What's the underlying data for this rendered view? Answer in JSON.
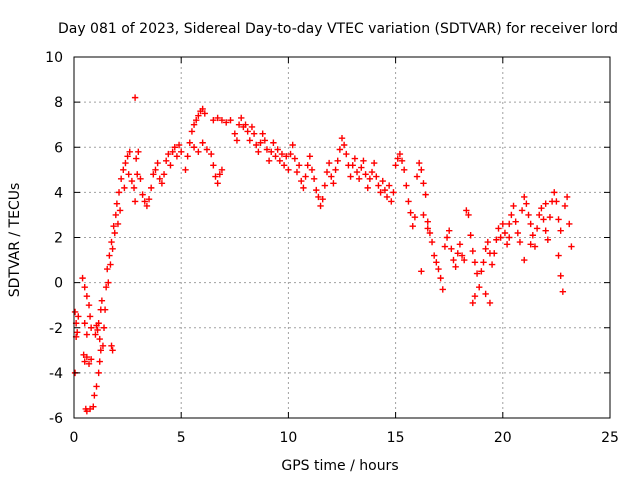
{
  "colors": {
    "series": "#ff0000",
    "grid": "#a0a0a0",
    "axis": "#000000",
    "background": "#ffffff"
  },
  "chart_data": {
    "type": "scatter",
    "title": "Day 081 of 2023, Sidereal Day-to-day VTEC variation (SDTVAR) for receiver lord",
    "xlabel": "GPS time / hours",
    "ylabel": "SDTVAR / TECUs",
    "xlim": [
      0,
      25
    ],
    "ylim": [
      -6,
      10
    ],
    "xticks": [
      0,
      5,
      10,
      15,
      20,
      25
    ],
    "yticks": [
      -6,
      -4,
      -2,
      0,
      2,
      4,
      6,
      8,
      10
    ],
    "grid": true,
    "marker": "+",
    "series": [
      {
        "name": "SDTVAR",
        "points": [
          [
            0.05,
            -1.3
          ],
          [
            0.1,
            -1.8
          ],
          [
            0.15,
            -2.2
          ],
          [
            0.1,
            -2.4
          ],
          [
            0.05,
            -4.0
          ],
          [
            0.2,
            -1.5
          ],
          [
            0.4,
            0.2
          ],
          [
            0.5,
            -0.2
          ],
          [
            0.6,
            -0.6
          ],
          [
            0.7,
            -1.0
          ],
          [
            0.75,
            -1.5
          ],
          [
            0.8,
            -2.0
          ],
          [
            0.6,
            -2.3
          ],
          [
            0.5,
            -1.8
          ],
          [
            0.45,
            -3.2
          ],
          [
            0.5,
            -3.5
          ],
          [
            0.6,
            -3.3
          ],
          [
            0.7,
            -3.6
          ],
          [
            0.8,
            -3.4
          ],
          [
            0.55,
            -5.6
          ],
          [
            0.6,
            -5.7
          ],
          [
            0.75,
            -5.6
          ],
          [
            0.9,
            -5.5
          ],
          [
            0.95,
            -5.0
          ],
          [
            1.05,
            -4.6
          ],
          [
            1.15,
            -4.0
          ],
          [
            1.2,
            -3.5
          ],
          [
            1.25,
            -3.0
          ],
          [
            1.2,
            -2.5
          ],
          [
            1.1,
            -2.1
          ],
          [
            1.0,
            -2.3
          ],
          [
            1.05,
            -1.9
          ],
          [
            1.15,
            -1.8
          ],
          [
            1.25,
            -1.2
          ],
          [
            1.3,
            -0.8
          ],
          [
            1.35,
            -2.8
          ],
          [
            1.4,
            -2.0
          ],
          [
            1.45,
            -1.2
          ],
          [
            1.5,
            -0.2
          ],
          [
            1.55,
            0.6
          ],
          [
            1.6,
            0.0
          ],
          [
            1.65,
            1.2
          ],
          [
            1.7,
            0.8
          ],
          [
            1.75,
            1.8
          ],
          [
            1.8,
            1.5
          ],
          [
            1.85,
            2.5
          ],
          [
            1.9,
            2.2
          ],
          [
            1.95,
            3.0
          ],
          [
            2.0,
            3.5
          ],
          [
            2.05,
            2.6
          ],
          [
            2.1,
            4.0
          ],
          [
            2.15,
            3.2
          ],
          [
            2.2,
            4.6
          ],
          [
            2.3,
            5.0
          ],
          [
            2.35,
            4.2
          ],
          [
            2.4,
            5.3
          ],
          [
            2.5,
            5.6
          ],
          [
            2.55,
            4.8
          ],
          [
            2.6,
            5.8
          ],
          [
            1.75,
            -2.8
          ],
          [
            1.8,
            -3.0
          ],
          [
            2.7,
            4.5
          ],
          [
            2.8,
            4.2
          ],
          [
            2.85,
            3.6
          ],
          [
            2.9,
            5.5
          ],
          [
            2.95,
            4.8
          ],
          [
            3.0,
            5.8
          ],
          [
            3.1,
            4.6
          ],
          [
            3.2,
            3.9
          ],
          [
            3.3,
            3.6
          ],
          [
            3.4,
            3.4
          ],
          [
            3.5,
            3.7
          ],
          [
            3.6,
            4.2
          ],
          [
            3.7,
            4.8
          ],
          [
            3.8,
            5.0
          ],
          [
            3.9,
            5.3
          ],
          [
            4.0,
            4.6
          ],
          [
            4.1,
            4.4
          ],
          [
            4.2,
            4.8
          ],
          [
            4.3,
            5.4
          ],
          [
            4.4,
            5.7
          ],
          [
            4.5,
            5.2
          ],
          [
            4.6,
            5.8
          ],
          [
            4.7,
            6.0
          ],
          [
            4.8,
            5.6
          ],
          [
            4.9,
            6.1
          ],
          [
            5.0,
            5.8
          ],
          [
            2.85,
            8.2
          ],
          [
            5.2,
            5.0
          ],
          [
            5.3,
            5.6
          ],
          [
            5.4,
            6.2
          ],
          [
            5.5,
            6.7
          ],
          [
            5.6,
            7.0
          ],
          [
            5.7,
            7.2
          ],
          [
            5.8,
            7.4
          ],
          [
            5.9,
            7.6
          ],
          [
            6.0,
            7.7
          ],
          [
            6.1,
            7.5
          ],
          [
            5.6,
            6.0
          ],
          [
            5.8,
            5.8
          ],
          [
            6.0,
            6.2
          ],
          [
            6.2,
            5.9
          ],
          [
            6.4,
            5.7
          ],
          [
            6.5,
            5.2
          ],
          [
            6.6,
            4.7
          ],
          [
            6.7,
            4.4
          ],
          [
            6.8,
            4.8
          ],
          [
            6.9,
            5.0
          ],
          [
            6.5,
            7.2
          ],
          [
            6.7,
            7.3
          ],
          [
            6.9,
            7.2
          ],
          [
            7.1,
            7.1
          ],
          [
            7.3,
            7.2
          ],
          [
            7.5,
            6.6
          ],
          [
            7.6,
            6.3
          ],
          [
            7.7,
            7.0
          ],
          [
            7.8,
            7.3
          ],
          [
            7.9,
            6.9
          ],
          [
            8.0,
            7.0
          ],
          [
            8.1,
            6.7
          ],
          [
            8.2,
            6.3
          ],
          [
            8.3,
            6.9
          ],
          [
            8.4,
            6.6
          ],
          [
            8.5,
            6.1
          ],
          [
            8.6,
            5.8
          ],
          [
            8.7,
            6.2
          ],
          [
            8.8,
            6.6
          ],
          [
            8.9,
            6.3
          ],
          [
            9.0,
            5.9
          ],
          [
            9.1,
            5.4
          ],
          [
            9.2,
            5.8
          ],
          [
            9.3,
            6.2
          ],
          [
            9.4,
            5.6
          ],
          [
            9.5,
            5.9
          ],
          [
            9.6,
            5.4
          ],
          [
            9.7,
            5.7
          ],
          [
            9.8,
            5.2
          ],
          [
            9.9,
            5.6
          ],
          [
            10.0,
            5.0
          ],
          [
            10.1,
            5.7
          ],
          [
            10.2,
            6.1
          ],
          [
            10.3,
            5.5
          ],
          [
            10.4,
            4.9
          ],
          [
            10.5,
            5.2
          ],
          [
            10.6,
            4.5
          ],
          [
            10.7,
            4.2
          ],
          [
            10.8,
            4.7
          ],
          [
            10.9,
            5.2
          ],
          [
            11.0,
            5.6
          ],
          [
            11.1,
            5.0
          ],
          [
            11.2,
            4.6
          ],
          [
            11.3,
            4.1
          ],
          [
            11.4,
            3.8
          ],
          [
            11.5,
            3.4
          ],
          [
            11.6,
            3.7
          ],
          [
            11.7,
            4.3
          ],
          [
            11.8,
            4.9
          ],
          [
            11.9,
            5.3
          ],
          [
            12.0,
            4.7
          ],
          [
            12.1,
            4.4
          ],
          [
            12.2,
            5.0
          ],
          [
            12.3,
            5.4
          ],
          [
            12.4,
            5.9
          ],
          [
            12.5,
            6.4
          ],
          [
            12.6,
            6.1
          ],
          [
            12.7,
            5.7
          ],
          [
            12.8,
            5.2
          ],
          [
            12.9,
            4.7
          ],
          [
            13.0,
            5.2
          ],
          [
            13.1,
            5.5
          ],
          [
            13.2,
            4.9
          ],
          [
            13.3,
            4.6
          ],
          [
            13.4,
            5.1
          ],
          [
            13.5,
            5.4
          ],
          [
            13.6,
            4.8
          ],
          [
            13.7,
            4.2
          ],
          [
            13.8,
            4.6
          ],
          [
            13.9,
            4.9
          ],
          [
            14.0,
            5.3
          ],
          [
            14.1,
            4.7
          ],
          [
            14.2,
            4.3
          ],
          [
            14.3,
            4.0
          ],
          [
            14.4,
            4.5
          ],
          [
            14.5,
            4.1
          ],
          [
            14.6,
            3.8
          ],
          [
            14.7,
            4.3
          ],
          [
            14.8,
            3.6
          ],
          [
            14.9,
            4.0
          ],
          [
            15.0,
            5.2
          ],
          [
            15.1,
            5.5
          ],
          [
            15.2,
            5.7
          ],
          [
            15.3,
            5.4
          ],
          [
            15.4,
            5.0
          ],
          [
            15.5,
            4.3
          ],
          [
            15.6,
            3.6
          ],
          [
            15.7,
            3.1
          ],
          [
            15.8,
            2.5
          ],
          [
            15.9,
            2.9
          ],
          [
            16.0,
            4.7
          ],
          [
            16.1,
            5.3
          ],
          [
            16.2,
            5.0
          ],
          [
            16.3,
            4.4
          ],
          [
            16.4,
            3.9
          ],
          [
            16.5,
            2.7
          ],
          [
            16.6,
            2.2
          ],
          [
            16.7,
            1.8
          ],
          [
            16.8,
            1.2
          ],
          [
            16.9,
            0.9
          ],
          [
            17.0,
            0.6
          ],
          [
            17.1,
            0.2
          ],
          [
            17.2,
            -0.3
          ],
          [
            16.2,
            0.5
          ],
          [
            16.3,
            3.0
          ],
          [
            16.5,
            2.4
          ],
          [
            17.3,
            1.6
          ],
          [
            17.4,
            2.0
          ],
          [
            17.5,
            2.3
          ],
          [
            17.6,
            1.5
          ],
          [
            17.7,
            1.0
          ],
          [
            17.8,
            0.7
          ],
          [
            17.9,
            1.3
          ],
          [
            18.0,
            1.7
          ],
          [
            18.1,
            1.2
          ],
          [
            18.2,
            1.0
          ],
          [
            18.3,
            3.2
          ],
          [
            18.4,
            3.0
          ],
          [
            18.5,
            2.1
          ],
          [
            18.6,
            1.4
          ],
          [
            18.7,
            0.9
          ],
          [
            18.8,
            0.4
          ],
          [
            18.9,
            -0.2
          ],
          [
            19.0,
            0.5
          ],
          [
            19.1,
            0.9
          ],
          [
            19.2,
            1.5
          ],
          [
            19.3,
            1.8
          ],
          [
            19.4,
            1.3
          ],
          [
            18.6,
            -0.9
          ],
          [
            18.7,
            -0.6
          ],
          [
            19.2,
            -0.5
          ],
          [
            19.4,
            -0.9
          ],
          [
            19.5,
            0.8
          ],
          [
            19.6,
            1.3
          ],
          [
            19.7,
            1.9
          ],
          [
            19.8,
            2.4
          ],
          [
            19.9,
            2.0
          ],
          [
            20.0,
            2.6
          ],
          [
            20.1,
            2.2
          ],
          [
            20.2,
            1.7
          ],
          [
            20.3,
            2.6
          ],
          [
            20.4,
            3.0
          ],
          [
            20.5,
            3.4
          ],
          [
            20.6,
            2.7
          ],
          [
            20.7,
            2.2
          ],
          [
            20.8,
            1.8
          ],
          [
            20.9,
            3.2
          ],
          [
            21.0,
            3.8
          ],
          [
            21.1,
            3.5
          ],
          [
            21.2,
            3.0
          ],
          [
            21.3,
            2.6
          ],
          [
            21.4,
            2.1
          ],
          [
            21.5,
            1.6
          ],
          [
            21.6,
            2.4
          ],
          [
            21.7,
            3.0
          ],
          [
            21.8,
            3.3
          ],
          [
            21.9,
            2.8
          ],
          [
            22.0,
            2.3
          ],
          [
            22.1,
            1.9
          ],
          [
            22.2,
            2.9
          ],
          [
            22.3,
            3.6
          ],
          [
            22.4,
            4.0
          ],
          [
            22.5,
            3.6
          ],
          [
            22.6,
            2.8
          ],
          [
            22.7,
            2.3
          ],
          [
            22.6,
            1.2
          ],
          [
            22.7,
            0.3
          ],
          [
            22.8,
            -0.4
          ],
          [
            22.9,
            3.4
          ],
          [
            23.0,
            3.8
          ],
          [
            23.1,
            2.6
          ],
          [
            23.2,
            1.6
          ],
          [
            20.3,
            2.0
          ],
          [
            21.0,
            1.0
          ],
          [
            21.3,
            1.7
          ],
          [
            22.0,
            3.5
          ]
        ]
      }
    ]
  }
}
